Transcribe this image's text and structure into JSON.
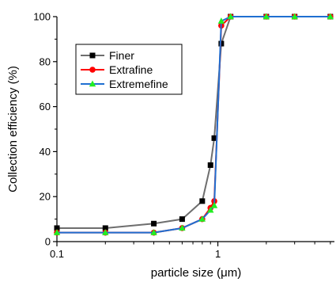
{
  "chart_data": {
    "type": "line",
    "title": "",
    "xlabel_prefix": "particle size (",
    "xlabel_mu": "μ",
    "xlabel_suffix": "m)",
    "ylabel": "Collection efficiency (%)",
    "x_scale": "log",
    "xlim": [
      0.1,
      5.3
    ],
    "ylim": [
      0,
      100
    ],
    "x_ticks": [
      {
        "value": 0.1,
        "label": "0.1"
      },
      {
        "value": 1,
        "label": "1"
      }
    ],
    "y_ticks": [
      {
        "value": 0,
        "label": "0"
      },
      {
        "value": 20,
        "label": "20"
      },
      {
        "value": 40,
        "label": "40"
      },
      {
        "value": 60,
        "label": "60"
      },
      {
        "value": 80,
        "label": "80"
      },
      {
        "value": 100,
        "label": "100"
      }
    ],
    "grid": false,
    "legend_position": "top-left",
    "series": [
      {
        "name": "Finer",
        "color": "#6e6e6e",
        "marker": "square",
        "marker_color": "#000000",
        "x": [
          0.1,
          0.2,
          0.4,
          0.6,
          0.8,
          0.9,
          0.95,
          1.05,
          1.2,
          2.0,
          3.0,
          5.0
        ],
        "y": [
          6,
          6,
          8,
          10,
          18,
          34,
          46,
          88,
          100,
          100,
          100,
          100
        ]
      },
      {
        "name": "Extrafine",
        "color": "#ff0000",
        "marker": "circle",
        "marker_color": "#ff0000",
        "x": [
          0.1,
          0.2,
          0.4,
          0.6,
          0.8,
          0.9,
          0.95,
          1.05,
          1.2,
          2.0,
          3.0,
          5.0
        ],
        "y": [
          4,
          4,
          4,
          6,
          10,
          15,
          18,
          96,
          100,
          100,
          100,
          100
        ]
      },
      {
        "name": "Extremefine",
        "color": "#1f6fd1",
        "marker": "triangle",
        "marker_color": "#22ee22",
        "x": [
          0.1,
          0.2,
          0.4,
          0.6,
          0.8,
          0.9,
          0.95,
          1.05,
          1.2,
          2.0,
          3.0,
          5.0
        ],
        "y": [
          4,
          4,
          4,
          6,
          10,
          14,
          16,
          98,
          100,
          100,
          100,
          100
        ]
      }
    ]
  }
}
